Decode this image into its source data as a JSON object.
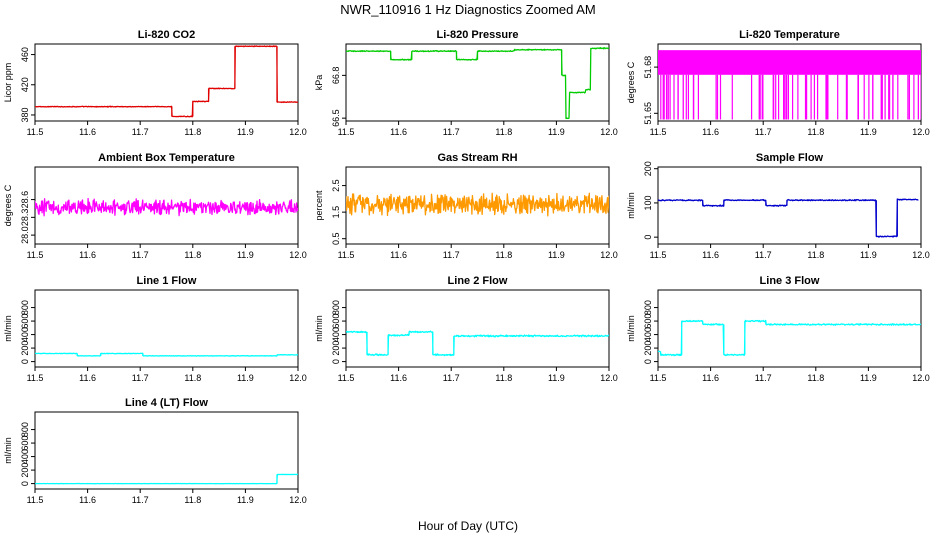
{
  "figure": {
    "title": "NWR_110916  1 Hz Diagnostics Zoomed AM",
    "xlabel": "Hour of Day (UTC)"
  },
  "chart_data": [
    {
      "type": "line",
      "title": "Li-820 CO2",
      "ylabel": "Licor ppm",
      "color": "#e00000",
      "xlim": [
        11.5,
        12.0
      ],
      "xticks": [
        "11.5",
        "11.6",
        "11.7",
        "11.8",
        "11.9",
        "12.0"
      ],
      "ylim": [
        372,
        474
      ],
      "yticks": [
        380,
        420,
        460
      ],
      "yticklabels": [
        "380",
        "420",
        "460"
      ],
      "noise": 0.6,
      "series": [
        {
          "x": [
            11.5,
            11.76,
            11.76,
            11.8,
            11.8,
            11.83,
            11.83,
            11.88,
            11.88,
            11.96,
            11.96,
            12.0
          ],
          "y": [
            391,
            391,
            378,
            378,
            398,
            398,
            415,
            415,
            471,
            471,
            397,
            397
          ]
        }
      ]
    },
    {
      "type": "line",
      "title": "Li-820 Pressure",
      "ylabel": "kPa",
      "color": "#00cc00",
      "xlim": [
        11.5,
        12.0
      ],
      "xticks": [
        "11.5",
        "11.6",
        "11.7",
        "11.8",
        "11.9",
        "12.0"
      ],
      "ylim": [
        66.48,
        67.02
      ],
      "yticks": [
        66.5,
        66.8
      ],
      "yticklabels": [
        "66.5",
        "66.8"
      ],
      "noise": 0.004,
      "series": [
        {
          "x": [
            11.5,
            11.585,
            11.585,
            11.625,
            11.625,
            11.71,
            11.71,
            11.75,
            11.75,
            11.82,
            11.82,
            11.91,
            11.91,
            11.918,
            11.918,
            11.925,
            11.925,
            11.955,
            11.955,
            11.965,
            11.965,
            12.0
          ],
          "y": [
            66.97,
            66.97,
            66.91,
            66.91,
            66.97,
            66.97,
            66.91,
            66.91,
            66.97,
            66.97,
            66.98,
            66.98,
            66.8,
            66.5,
            66.5,
            66.68,
            66.68,
            66.7,
            66.7,
            66.99,
            66.99,
            66.99
          ]
        }
      ]
    },
    {
      "type": "line",
      "title": "Li-820 Temperature",
      "ylabel": "degrees C",
      "color": "#ff00ff",
      "xlim": [
        11.5,
        12.0
      ],
      "xticks": [
        "11.5",
        "11.6",
        "11.7",
        "11.8",
        "11.9",
        "12.0"
      ],
      "ylim": [
        51.645,
        51.695
      ],
      "yticks": [
        51.65,
        51.68
      ],
      "yticklabels": [
        "51.65",
        "51.68"
      ],
      "series": [
        {
          "x": [
            11.5,
            12.0
          ],
          "y": [
            51.691,
            51.675
          ]
        }
      ],
      "spikes": {
        "base": 51.691,
        "low": 51.675,
        "floor": 51.646,
        "n": 70
      }
    },
    {
      "type": "line",
      "title": "Ambient Box Temperature",
      "ylabel": "degrees C",
      "color": "#ff00ff",
      "xlim": [
        11.5,
        12.0
      ],
      "xticks": [
        "11.5",
        "11.6",
        "11.7",
        "11.8",
        "11.9",
        "12.0"
      ],
      "ylim": [
        27.85,
        29.15
      ],
      "yticks": [
        28.0,
        28.3,
        28.6
      ],
      "yticklabels": [
        "28.0",
        "28.3",
        "28.6"
      ],
      "noise": 0.16,
      "series": [
        {
          "x": [
            11.5,
            12.0
          ],
          "y": [
            28.47,
            28.47
          ]
        }
      ]
    },
    {
      "type": "line",
      "title": "Gas Stream RH",
      "ylabel": "percent",
      "color": "#ff9900",
      "xlim": [
        11.5,
        12.0
      ],
      "xticks": [
        "11.5",
        "11.6",
        "11.7",
        "11.8",
        "11.9",
        "12.0"
      ],
      "ylim": [
        0.3,
        3.2
      ],
      "yticks": [
        0.5,
        1.5,
        2.5
      ],
      "yticklabels": [
        "0.5",
        "1.5",
        "2.5"
      ],
      "noise": 0.45,
      "series": [
        {
          "x": [
            11.5,
            12.0
          ],
          "y": [
            1.8,
            1.8
          ]
        }
      ]
    },
    {
      "type": "line",
      "title": "Sample Flow",
      "ylabel": "ml/min",
      "color": "#0000cc",
      "xlim": [
        11.5,
        12.0
      ],
      "xticks": [
        "11.5",
        "11.6",
        "11.7",
        "11.8",
        "11.9",
        "12.0"
      ],
      "ylim": [
        -20,
        205
      ],
      "yticks": [
        0,
        100,
        200
      ],
      "yticklabels": [
        "0",
        "100",
        "200"
      ],
      "noise": 2,
      "series": [
        {
          "x": [
            11.5,
            11.585,
            11.585,
            11.625,
            11.625,
            11.705,
            11.705,
            11.745,
            11.745,
            11.915,
            11.915,
            11.955,
            11.955,
            11.995
          ],
          "y": [
            108,
            108,
            92,
            92,
            108,
            108,
            92,
            92,
            108,
            108,
            2,
            2,
            110,
            110
          ]
        }
      ]
    },
    {
      "type": "line",
      "title": "Line 1 Flow",
      "ylabel": "ml/min",
      "color": "#00ffff",
      "xlim": [
        11.5,
        12.0
      ],
      "xticks": [
        "11.5",
        "11.6",
        "11.7",
        "11.8",
        "11.9",
        "12.0"
      ],
      "ylim": [
        -80,
        1060
      ],
      "yticks": [
        0,
        200,
        400,
        600,
        800
      ],
      "yticklabels": [
        "0",
        "200",
        "400",
        "600",
        "800"
      ],
      "noise": 4,
      "series": [
        {
          "x": [
            11.5,
            11.58,
            11.58,
            11.625,
            11.625,
            11.705,
            11.705,
            11.96,
            11.96,
            12.0
          ],
          "y": [
            120,
            120,
            85,
            85,
            120,
            120,
            85,
            85,
            100,
            100
          ]
        }
      ]
    },
    {
      "type": "line",
      "title": "Line 2 Flow",
      "ylabel": "ml/min",
      "color": "#00ffff",
      "xlim": [
        11.5,
        12.0
      ],
      "xticks": [
        "11.5",
        "11.6",
        "11.7",
        "11.8",
        "11.9",
        "12.0"
      ],
      "ylim": [
        -80,
        1060
      ],
      "yticks": [
        0,
        200,
        400,
        600,
        800
      ],
      "yticklabels": [
        "0",
        "200",
        "400",
        "600",
        "800"
      ],
      "noise": 14,
      "series": [
        {
          "x": [
            11.5,
            11.54,
            11.54,
            11.58,
            11.58,
            11.62,
            11.62,
            11.665,
            11.665,
            11.705,
            11.705,
            12.0
          ],
          "y": [
            440,
            440,
            100,
            100,
            390,
            390,
            440,
            440,
            100,
            100,
            380,
            380
          ]
        }
      ]
    },
    {
      "type": "line",
      "title": "Line 3 Flow",
      "ylabel": "ml/min",
      "color": "#00ffff",
      "xlim": [
        11.5,
        12.0
      ],
      "xticks": [
        "11.5",
        "11.6",
        "11.7",
        "11.8",
        "11.9",
        "12.0"
      ],
      "ylim": [
        -80,
        1060
      ],
      "yticks": [
        0,
        200,
        400,
        600,
        800
      ],
      "yticklabels": [
        "0",
        "200",
        "400",
        "600",
        "800"
      ],
      "noise": 12,
      "series": [
        {
          "x": [
            11.5,
            11.505,
            11.505,
            11.545,
            11.545,
            11.585,
            11.585,
            11.625,
            11.625,
            11.665,
            11.665,
            11.705,
            11.705,
            12.0
          ],
          "y": [
            150,
            150,
            100,
            100,
            600,
            600,
            550,
            550,
            100,
            100,
            600,
            600,
            550,
            550
          ]
        }
      ]
    },
    {
      "type": "line",
      "title": "Line 4 (LT) Flow",
      "ylabel": "ml/min",
      "color": "#00ffff",
      "xlim": [
        11.5,
        12.0
      ],
      "xticks": [
        "11.5",
        "11.6",
        "11.7",
        "11.8",
        "11.9",
        "12.0"
      ],
      "ylim": [
        -80,
        1060
      ],
      "yticks": [
        0,
        200,
        400,
        600,
        800
      ],
      "yticklabels": [
        "0",
        "200",
        "400",
        "600",
        "800"
      ],
      "noise": 2,
      "series": [
        {
          "x": [
            11.5,
            11.96,
            11.96,
            12.0
          ],
          "y": [
            0,
            0,
            135,
            135
          ]
        }
      ]
    }
  ]
}
